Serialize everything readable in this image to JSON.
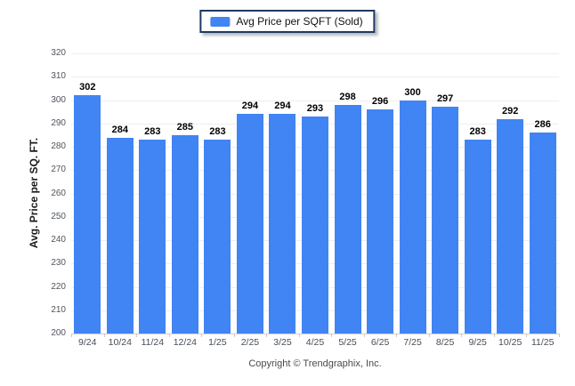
{
  "legend": {
    "label": "Avg Price per SQFT (Sold)"
  },
  "footer": {
    "copyright": "Copyright © Trendgraphix, Inc."
  },
  "chart_data": {
    "type": "bar",
    "title": "",
    "xlabel": "",
    "ylabel": "Avg. Price per SQ. FT.",
    "series_name": "Avg Price per SQFT (Sold)",
    "categories": [
      "9/24",
      "10/24",
      "11/24",
      "12/24",
      "1/25",
      "2/25",
      "3/25",
      "4/25",
      "5/25",
      "6/25",
      "7/25",
      "8/25",
      "9/25",
      "10/25",
      "11/25"
    ],
    "values": [
      302,
      284,
      283,
      285,
      283,
      294,
      294,
      293,
      298,
      296,
      300,
      297,
      283,
      292,
      286
    ],
    "ylim": [
      200,
      320
    ],
    "ytick_step": 10,
    "grid": true,
    "legend_position": "top-center",
    "colors": {
      "bar": "#4184F3",
      "grid": "#eeeeee",
      "axis_line": "#cfcfcf",
      "tick_label": "#50555c",
      "value_label": "#000000",
      "legend_border": "#1e3a5f"
    }
  }
}
